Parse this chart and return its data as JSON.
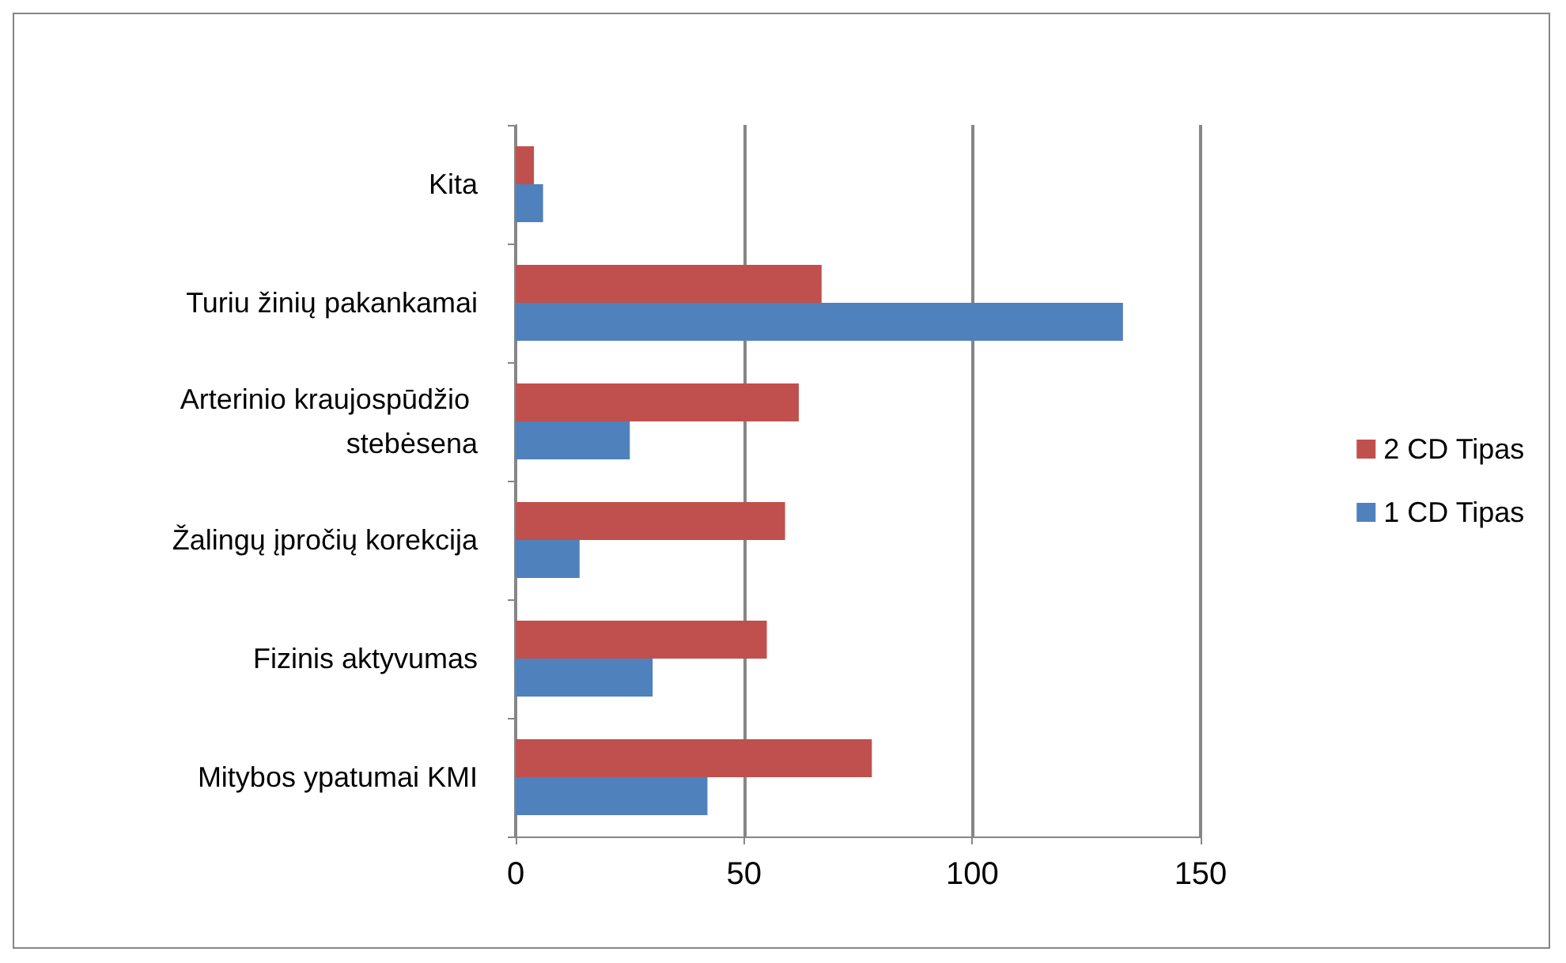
{
  "chart_data": {
    "type": "bar",
    "orientation": "horizontal",
    "categories": [
      "Kita",
      "Turiu žinių pakankamai",
      "Arterinio kraujospūdžio stebėsena",
      "Žalingų įpročių korekcija",
      "Fizinis aktyvumas",
      "Mitybos ypatumai KMI"
    ],
    "series": [
      {
        "name": "2 CD Tipas",
        "color": "#c0504d",
        "values": [
          4,
          67,
          62,
          59,
          55,
          78
        ]
      },
      {
        "name": "1 CD Tipas",
        "color": "#4f81bd",
        "values": [
          6,
          133,
          25,
          14,
          30,
          42
        ]
      }
    ],
    "xlim": [
      0,
      150
    ],
    "xticks": [
      0,
      50,
      100,
      150
    ],
    "grid": "x",
    "legend": "right"
  }
}
